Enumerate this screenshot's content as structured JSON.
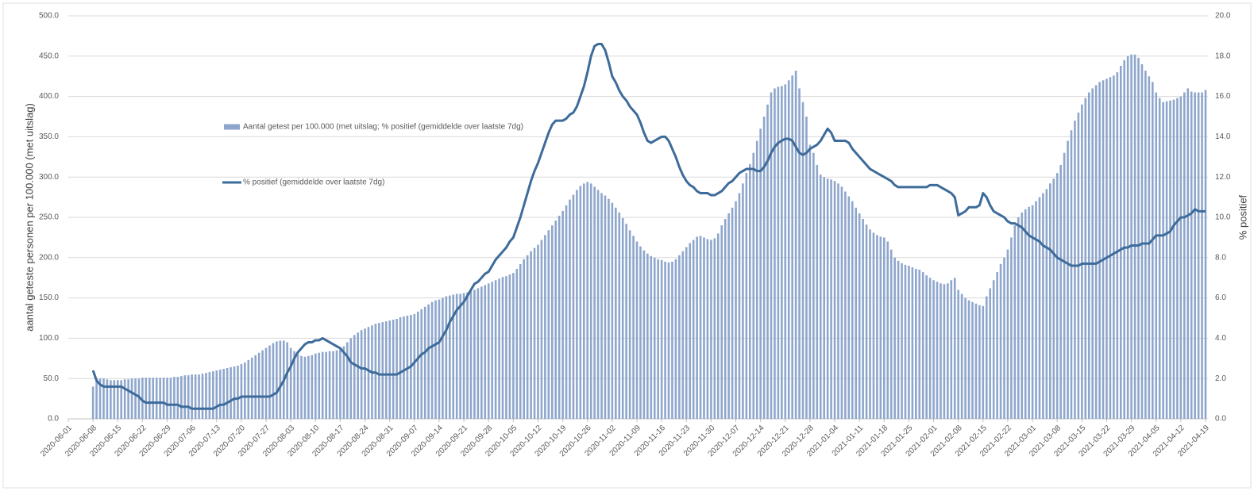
{
  "chart_data": {
    "type": "bar-line",
    "y_label": "aantal geteste personen per 100.000 (met uitslag)",
    "y2_label": "% positief",
    "categories": [
      "2020-06-01",
      null,
      null,
      null,
      null,
      null,
      null,
      "2020-06-08",
      null,
      null,
      null,
      null,
      null,
      null,
      "2020-06-15",
      null,
      null,
      null,
      null,
      null,
      null,
      "2020-06-22",
      null,
      null,
      null,
      null,
      null,
      null,
      "2020-06-29",
      null,
      null,
      null,
      null,
      null,
      null,
      "2020-07-06",
      null,
      null,
      null,
      null,
      null,
      null,
      "2020-07-13",
      null,
      null,
      null,
      null,
      null,
      null,
      "2020-07-20",
      null,
      null,
      null,
      null,
      null,
      null,
      "2020-07-27",
      null,
      null,
      null,
      null,
      null,
      null,
      "2020-08-03",
      null,
      null,
      null,
      null,
      null,
      null,
      "2020-08-10",
      null,
      null,
      null,
      null,
      null,
      null,
      "2020-08-17",
      null,
      null,
      null,
      null,
      null,
      null,
      "2020-08-24",
      null,
      null,
      null,
      null,
      null,
      null,
      "2020-08-31",
      null,
      null,
      null,
      null,
      null,
      null,
      "2020-09-07",
      null,
      null,
      null,
      null,
      null,
      null,
      "2020-09-14",
      null,
      null,
      null,
      null,
      null,
      null,
      "2020-09-21",
      null,
      null,
      null,
      null,
      null,
      null,
      "2020-09-28",
      null,
      null,
      null,
      null,
      null,
      null,
      "2020-10-05",
      null,
      null,
      null,
      null,
      null,
      null,
      "2020-10-12",
      null,
      null,
      null,
      null,
      null,
      null,
      "2020-10-19",
      null,
      null,
      null,
      null,
      null,
      null,
      "2020-10-26",
      null,
      null,
      null,
      null,
      null,
      null,
      "2020-11-02",
      null,
      null,
      null,
      null,
      null,
      null,
      "2020-11-09",
      null,
      null,
      null,
      null,
      null,
      null,
      "2020-11-16",
      null,
      null,
      null,
      null,
      null,
      null,
      "2020-11-23",
      null,
      null,
      null,
      null,
      null,
      null,
      "2020-11-30",
      null,
      null,
      null,
      null,
      null,
      null,
      "2020-12-07",
      null,
      null,
      null,
      null,
      null,
      null,
      "2020-12-14",
      null,
      null,
      null,
      null,
      null,
      null,
      "2020-12-21",
      null,
      null,
      null,
      null,
      null,
      null,
      "2020-12-28",
      null,
      null,
      null,
      null,
      null,
      null,
      "2021-01-04",
      null,
      null,
      null,
      null,
      null,
      null,
      "2021-01-11",
      null,
      null,
      null,
      null,
      null,
      null,
      "2021-01-18",
      null,
      null,
      null,
      null,
      null,
      null,
      "2021-01-25",
      null,
      null,
      null,
      null,
      null,
      null,
      "2021-02-01",
      null,
      null,
      null,
      null,
      null,
      null,
      "2021-02-08",
      null,
      null,
      null,
      null,
      null,
      null,
      "2021-02-15",
      null,
      null,
      null,
      null,
      null,
      null,
      "2021-02-22",
      null,
      null,
      null,
      null,
      null,
      null,
      "2021-03-01",
      null,
      null,
      null,
      null,
      null,
      null,
      "2021-03-08",
      null,
      null,
      null,
      null,
      null,
      null,
      "2021-03-15",
      null,
      null,
      null,
      null,
      null,
      null,
      "2021-03-22",
      null,
      null,
      null,
      null,
      null,
      null,
      "2021-03-29",
      null,
      null,
      null,
      null,
      null,
      null,
      "2021-04-05",
      null,
      null,
      null,
      null,
      null,
      null,
      "2021-04-12",
      null,
      null,
      null,
      null,
      null,
      null,
      "2021-04-19"
    ],
    "series": [
      {
        "name": "Aantal getest per 100.000 (met uitslag; % positief (gemiddelde over laatste 7dg)",
        "type": "bar",
        "color": "#8ea6cc",
        "values": [
          null,
          null,
          null,
          null,
          null,
          null,
          null,
          40,
          50,
          50,
          50,
          49,
          48,
          48,
          48,
          48,
          49,
          49,
          50,
          50,
          50,
          51,
          51,
          51,
          51,
          51,
          51,
          51,
          51,
          51,
          52,
          52,
          53,
          54,
          54,
          55,
          55,
          55,
          56,
          57,
          58,
          59,
          60,
          61,
          62,
          63,
          64,
          65,
          66,
          68,
          70,
          73,
          76,
          79,
          82,
          85,
          88,
          91,
          94,
          96,
          97,
          97,
          95,
          88,
          84,
          80,
          78,
          77,
          78,
          79,
          81,
          82,
          83,
          83,
          84,
          84,
          85,
          86,
          90,
          95,
          100,
          104,
          107,
          110,
          112,
          114,
          116,
          118,
          119,
          120,
          121,
          122,
          123,
          124,
          126,
          127,
          128,
          129,
          130,
          133,
          136,
          139,
          142,
          145,
          147,
          148,
          150,
          152,
          153,
          154,
          155,
          155,
          156,
          157,
          158,
          160,
          162,
          164,
          166,
          168,
          170,
          172,
          174,
          176,
          177,
          179,
          181,
          186,
          192,
          198,
          203,
          208,
          212,
          216,
          222,
          228,
          234,
          240,
          246,
          252,
          258,
          265,
          272,
          278,
          284,
          289,
          292,
          294,
          292,
          288,
          284,
          280,
          277,
          273,
          268,
          262,
          256,
          249,
          242,
          234,
          227,
          220,
          214,
          209,
          205,
          202,
          200,
          198,
          197,
          195,
          194,
          195,
          198,
          203,
          208,
          213,
          218,
          222,
          226,
          227,
          225,
          223,
          222,
          224,
          230,
          240,
          248,
          255,
          262,
          270,
          280,
          292,
          305,
          316,
          330,
          345,
          360,
          375,
          390,
          405,
          410,
          412,
          413,
          415,
          420,
          426,
          432,
          410,
          393,
          375,
          340,
          330,
          315,
          303,
          300,
          298,
          297,
          295,
          292,
          288,
          282,
          276,
          270,
          262,
          255,
          248,
          241,
          235,
          231,
          228,
          226,
          225,
          220,
          210,
          200,
          196,
          193,
          191,
          190,
          188,
          186,
          185,
          182,
          178,
          175,
          172,
          170,
          168,
          167,
          168,
          172,
          175,
          160,
          155,
          150,
          147,
          145,
          143,
          141,
          140,
          152,
          162,
          172,
          182,
          192,
          200,
          210,
          225,
          240,
          250,
          256,
          260,
          263,
          265,
          270,
          275,
          280,
          285,
          292,
          298,
          305,
          315,
          330,
          345,
          358,
          370,
          380,
          390,
          398,
          405,
          410,
          414,
          418,
          420,
          422,
          424,
          426,
          430,
          438,
          445,
          450,
          452,
          452,
          448,
          440,
          432,
          425,
          418,
          405,
          398,
          393,
          394,
          395,
          396,
          398,
          400,
          405,
          410,
          406,
          405,
          405,
          405,
          408
        ]
      },
      {
        "name": "% positief (gemiddelde over laatste 7dg)",
        "type": "line",
        "axis": "y2",
        "color": "#3d6b9a",
        "values": [
          null,
          null,
          null,
          null,
          null,
          null,
          null,
          2.4,
          1.9,
          1.7,
          1.6,
          1.6,
          1.6,
          1.6,
          1.6,
          1.6,
          1.5,
          1.4,
          1.3,
          1.2,
          1.1,
          0.9,
          0.8,
          0.8,
          0.8,
          0.8,
          0.8,
          0.8,
          0.7,
          0.7,
          0.7,
          0.7,
          0.6,
          0.6,
          0.6,
          0.5,
          0.5,
          0.5,
          0.5,
          0.5,
          0.5,
          0.5,
          0.6,
          0.7,
          0.7,
          0.8,
          0.9,
          1.0,
          1.0,
          1.1,
          1.1,
          1.1,
          1.1,
          1.1,
          1.1,
          1.1,
          1.1,
          1.1,
          1.2,
          1.3,
          1.6,
          1.9,
          2.3,
          2.6,
          3.0,
          3.3,
          3.5,
          3.7,
          3.8,
          3.8,
          3.9,
          3.9,
          4.0,
          3.9,
          3.8,
          3.7,
          3.6,
          3.5,
          3.3,
          3.1,
          2.8,
          2.7,
          2.6,
          2.5,
          2.5,
          2.4,
          2.3,
          2.3,
          2.2,
          2.2,
          2.2,
          2.2,
          2.2,
          2.2,
          2.3,
          2.4,
          2.5,
          2.6,
          2.8,
          3.0,
          3.2,
          3.3,
          3.5,
          3.6,
          3.7,
          3.8,
          4.1,
          4.4,
          4.8,
          5.1,
          5.4,
          5.6,
          5.8,
          6.1,
          6.4,
          6.7,
          6.8,
          7.0,
          7.2,
          7.3,
          7.6,
          7.9,
          8.1,
          8.3,
          8.5,
          8.8,
          9.0,
          9.5,
          10.0,
          10.6,
          11.2,
          11.8,
          12.3,
          12.7,
          13.2,
          13.7,
          14.2,
          14.6,
          14.8,
          14.8,
          14.8,
          14.9,
          15.1,
          15.2,
          15.5,
          16.0,
          16.5,
          17.2,
          18.0,
          18.5,
          18.6,
          18.6,
          18.3,
          17.7,
          17.0,
          16.7,
          16.3,
          16.0,
          15.8,
          15.5,
          15.3,
          15.1,
          14.7,
          14.2,
          13.8,
          13.7,
          13.8,
          13.9,
          14.0,
          14.0,
          13.8,
          13.4,
          13.0,
          12.5,
          12.1,
          11.8,
          11.6,
          11.5,
          11.3,
          11.2,
          11.2,
          11.2,
          11.1,
          11.1,
          11.2,
          11.3,
          11.5,
          11.7,
          11.8,
          12.0,
          12.2,
          12.3,
          12.4,
          12.4,
          12.4,
          12.3,
          12.3,
          12.5,
          12.8,
          13.2,
          13.5,
          13.7,
          13.8,
          13.9,
          13.9,
          13.8,
          13.5,
          13.2,
          13.1,
          13.2,
          13.4,
          13.5,
          13.6,
          13.8,
          14.1,
          14.4,
          14.2,
          13.8,
          13.8,
          13.8,
          13.8,
          13.7,
          13.4,
          13.2,
          13.0,
          12.8,
          12.6,
          12.4,
          12.3,
          12.2,
          12.1,
          12.0,
          11.9,
          11.8,
          11.6,
          11.5,
          11.5,
          11.5,
          11.5,
          11.5,
          11.5,
          11.5,
          11.5,
          11.5,
          11.6,
          11.6,
          11.6,
          11.5,
          11.4,
          11.3,
          11.2,
          11.0,
          10.1,
          10.2,
          10.3,
          10.5,
          10.5,
          10.5,
          10.6,
          11.2,
          11.0,
          10.6,
          10.3,
          10.2,
          10.1,
          10.0,
          9.8,
          9.7,
          9.7,
          9.6,
          9.5,
          9.3,
          9.1,
          9.0,
          8.9,
          8.8,
          8.6,
          8.5,
          8.4,
          8.2,
          8.0,
          7.9,
          7.8,
          7.7,
          7.6,
          7.6,
          7.6,
          7.7,
          7.7,
          7.7,
          7.7,
          7.7,
          7.8,
          7.9,
          8.0,
          8.1,
          8.2,
          8.3,
          8.4,
          8.5,
          8.5,
          8.6,
          8.6,
          8.6,
          8.7,
          8.7,
          8.7,
          8.9,
          9.1,
          9.1,
          9.1,
          9.2,
          9.3,
          9.6,
          9.8,
          10.0,
          10.0,
          10.1,
          10.2,
          10.4,
          10.3,
          10.3,
          10.3
        ]
      }
    ],
    "ylim": [
      0,
      500
    ],
    "yticks": [
      {
        "value": 0,
        "label": "0.0"
      },
      {
        "value": 50,
        "label": "50.0"
      },
      {
        "value": 100,
        "label": "100.0"
      },
      {
        "value": 150,
        "label": "150.0"
      },
      {
        "value": 200,
        "label": "200.0"
      },
      {
        "value": 250,
        "label": "250.0"
      },
      {
        "value": 300,
        "label": "300.0"
      },
      {
        "value": 350,
        "label": "350.0"
      },
      {
        "value": 400,
        "label": "400.0"
      },
      {
        "value": 450,
        "label": "450.0"
      },
      {
        "value": 500,
        "label": "500.0"
      }
    ],
    "y2lim": [
      0,
      20
    ],
    "y2ticks": [
      {
        "value": 0,
        "label": "0.0"
      },
      {
        "value": 2,
        "label": "2.0"
      },
      {
        "value": 4,
        "label": "4.0"
      },
      {
        "value": 6,
        "label": "6.0"
      },
      {
        "value": 8,
        "label": "8.0"
      },
      {
        "value": 10,
        "label": "10.0"
      },
      {
        "value": 12,
        "label": "12.0"
      },
      {
        "value": 14,
        "label": "14.0"
      },
      {
        "value": 16,
        "label": "16.0"
      },
      {
        "value": 18,
        "label": "18.0"
      },
      {
        "value": 20,
        "label": "20.0"
      }
    ],
    "grid": true
  }
}
